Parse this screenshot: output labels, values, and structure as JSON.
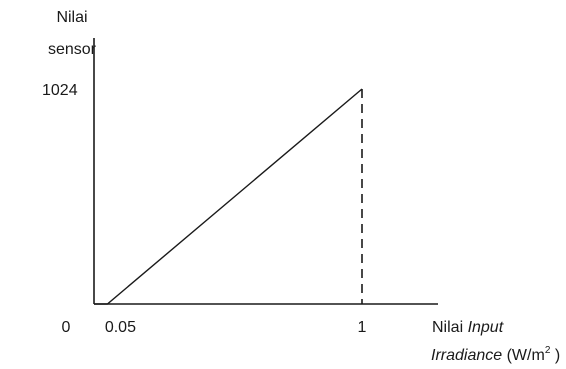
{
  "chart_data": {
    "type": "line",
    "ylabel_lines": [
      "Nilai",
      "sensor"
    ],
    "xlabel": {
      "prefix": "Nilai ",
      "input": "Input",
      "irradiance": "Irradiance",
      "unit_open": " (W/m",
      "unit_sup": "2",
      "unit_close": " )"
    },
    "xtick_labels": [
      "0",
      "0.05",
      "1"
    ],
    "ytick_labels": [
      "1024"
    ],
    "x_ticks": [
      0,
      0.05,
      1
    ],
    "y_ticks": [
      1024
    ],
    "xlim": [
      0,
      1.4
    ],
    "ylim": [
      0,
      1200
    ],
    "series": [
      {
        "x": [
          0,
          0.05,
          1
        ],
        "y": [
          0,
          0,
          1024
        ]
      }
    ],
    "reference_line": {
      "x": 1,
      "y_from": 0,
      "y_to": 1024,
      "style": "dashed"
    },
    "grid": false,
    "colors": {
      "line": "#1a1a1a",
      "axis": "#1a1a1a"
    }
  }
}
